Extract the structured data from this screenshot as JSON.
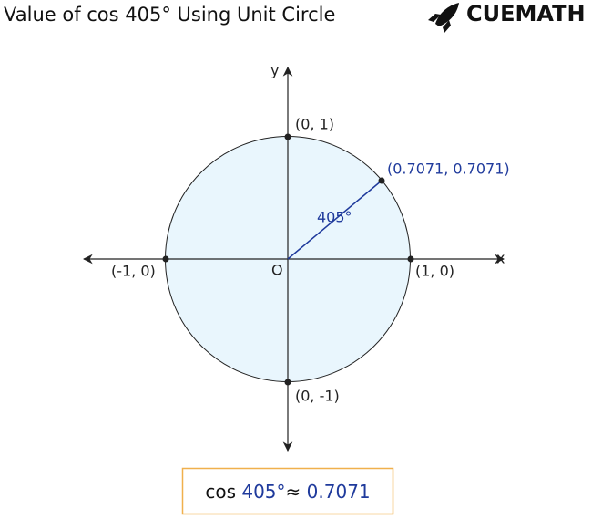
{
  "header": {
    "title": "Value of cos 405° Using Unit Circle",
    "brand": "CUEMATH"
  },
  "diagram": {
    "x_axis_label": "x",
    "y_axis_label": "y",
    "origin_label": "O",
    "points": [
      {
        "label": "(0, 1)"
      },
      {
        "label": "(1, 0)"
      },
      {
        "label": "(-1, 0)"
      },
      {
        "label": "(0, -1)"
      },
      {
        "label": "(0.7071, 0.7071)"
      }
    ],
    "angle_label": "405°"
  },
  "formula": {
    "prefix": "cos",
    "angle": "405°",
    "symbol": "≈",
    "value": "0.7071"
  }
}
